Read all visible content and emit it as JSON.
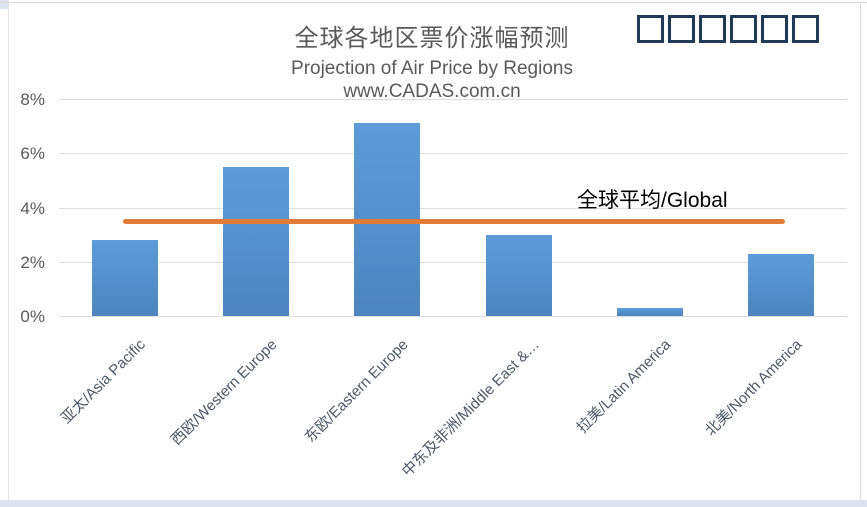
{
  "header": {
    "title": "全球各地区票价涨幅预测",
    "subtitle": "Projection of Air Price by Regions",
    "website": "www.CADAS.com.cn",
    "logo_boxes_count": 6
  },
  "chart_data": {
    "type": "bar",
    "title": "全球各地区票价涨幅预测",
    "subtitle": "Projection of Air Price by Regions",
    "source": "www.CADAS.com.cn",
    "unit": "%",
    "categories": [
      "亚太/Asia Pacific",
      "西欧/Western Europe",
      "东欧/Eastern Europe",
      "中东及非洲/Middle East &…",
      "拉美/Latin America",
      "北美/North America"
    ],
    "values": [
      2.8,
      5.5,
      7.1,
      3.0,
      0.3,
      2.3
    ],
    "y_ticks": [
      {
        "label": "0%",
        "value": 0
      },
      {
        "label": "2%",
        "value": 2
      },
      {
        "label": "4%",
        "value": 4
      },
      {
        "label": "6%",
        "value": 6
      },
      {
        "label": "8%",
        "value": 8
      }
    ],
    "ylim": [
      0,
      8
    ],
    "grid": true,
    "legend_position": "none",
    "reference_line": {
      "label": "全球平均/Global",
      "value": 3.5
    },
    "colors": {
      "bar_top": "#5d9cd8",
      "bar_bottom": "#4c85c0",
      "reference_line": "#e07b38",
      "gridline": "#dcdcdc",
      "tick_text": "#595959",
      "axis_label_text": "#4b5866",
      "title_text": "#595959",
      "reference_label_text": "#000000",
      "logo_box_border": "#1e3a56",
      "bottom_strip": "#dce3ee",
      "frame_border": "#d9d9d9"
    }
  }
}
